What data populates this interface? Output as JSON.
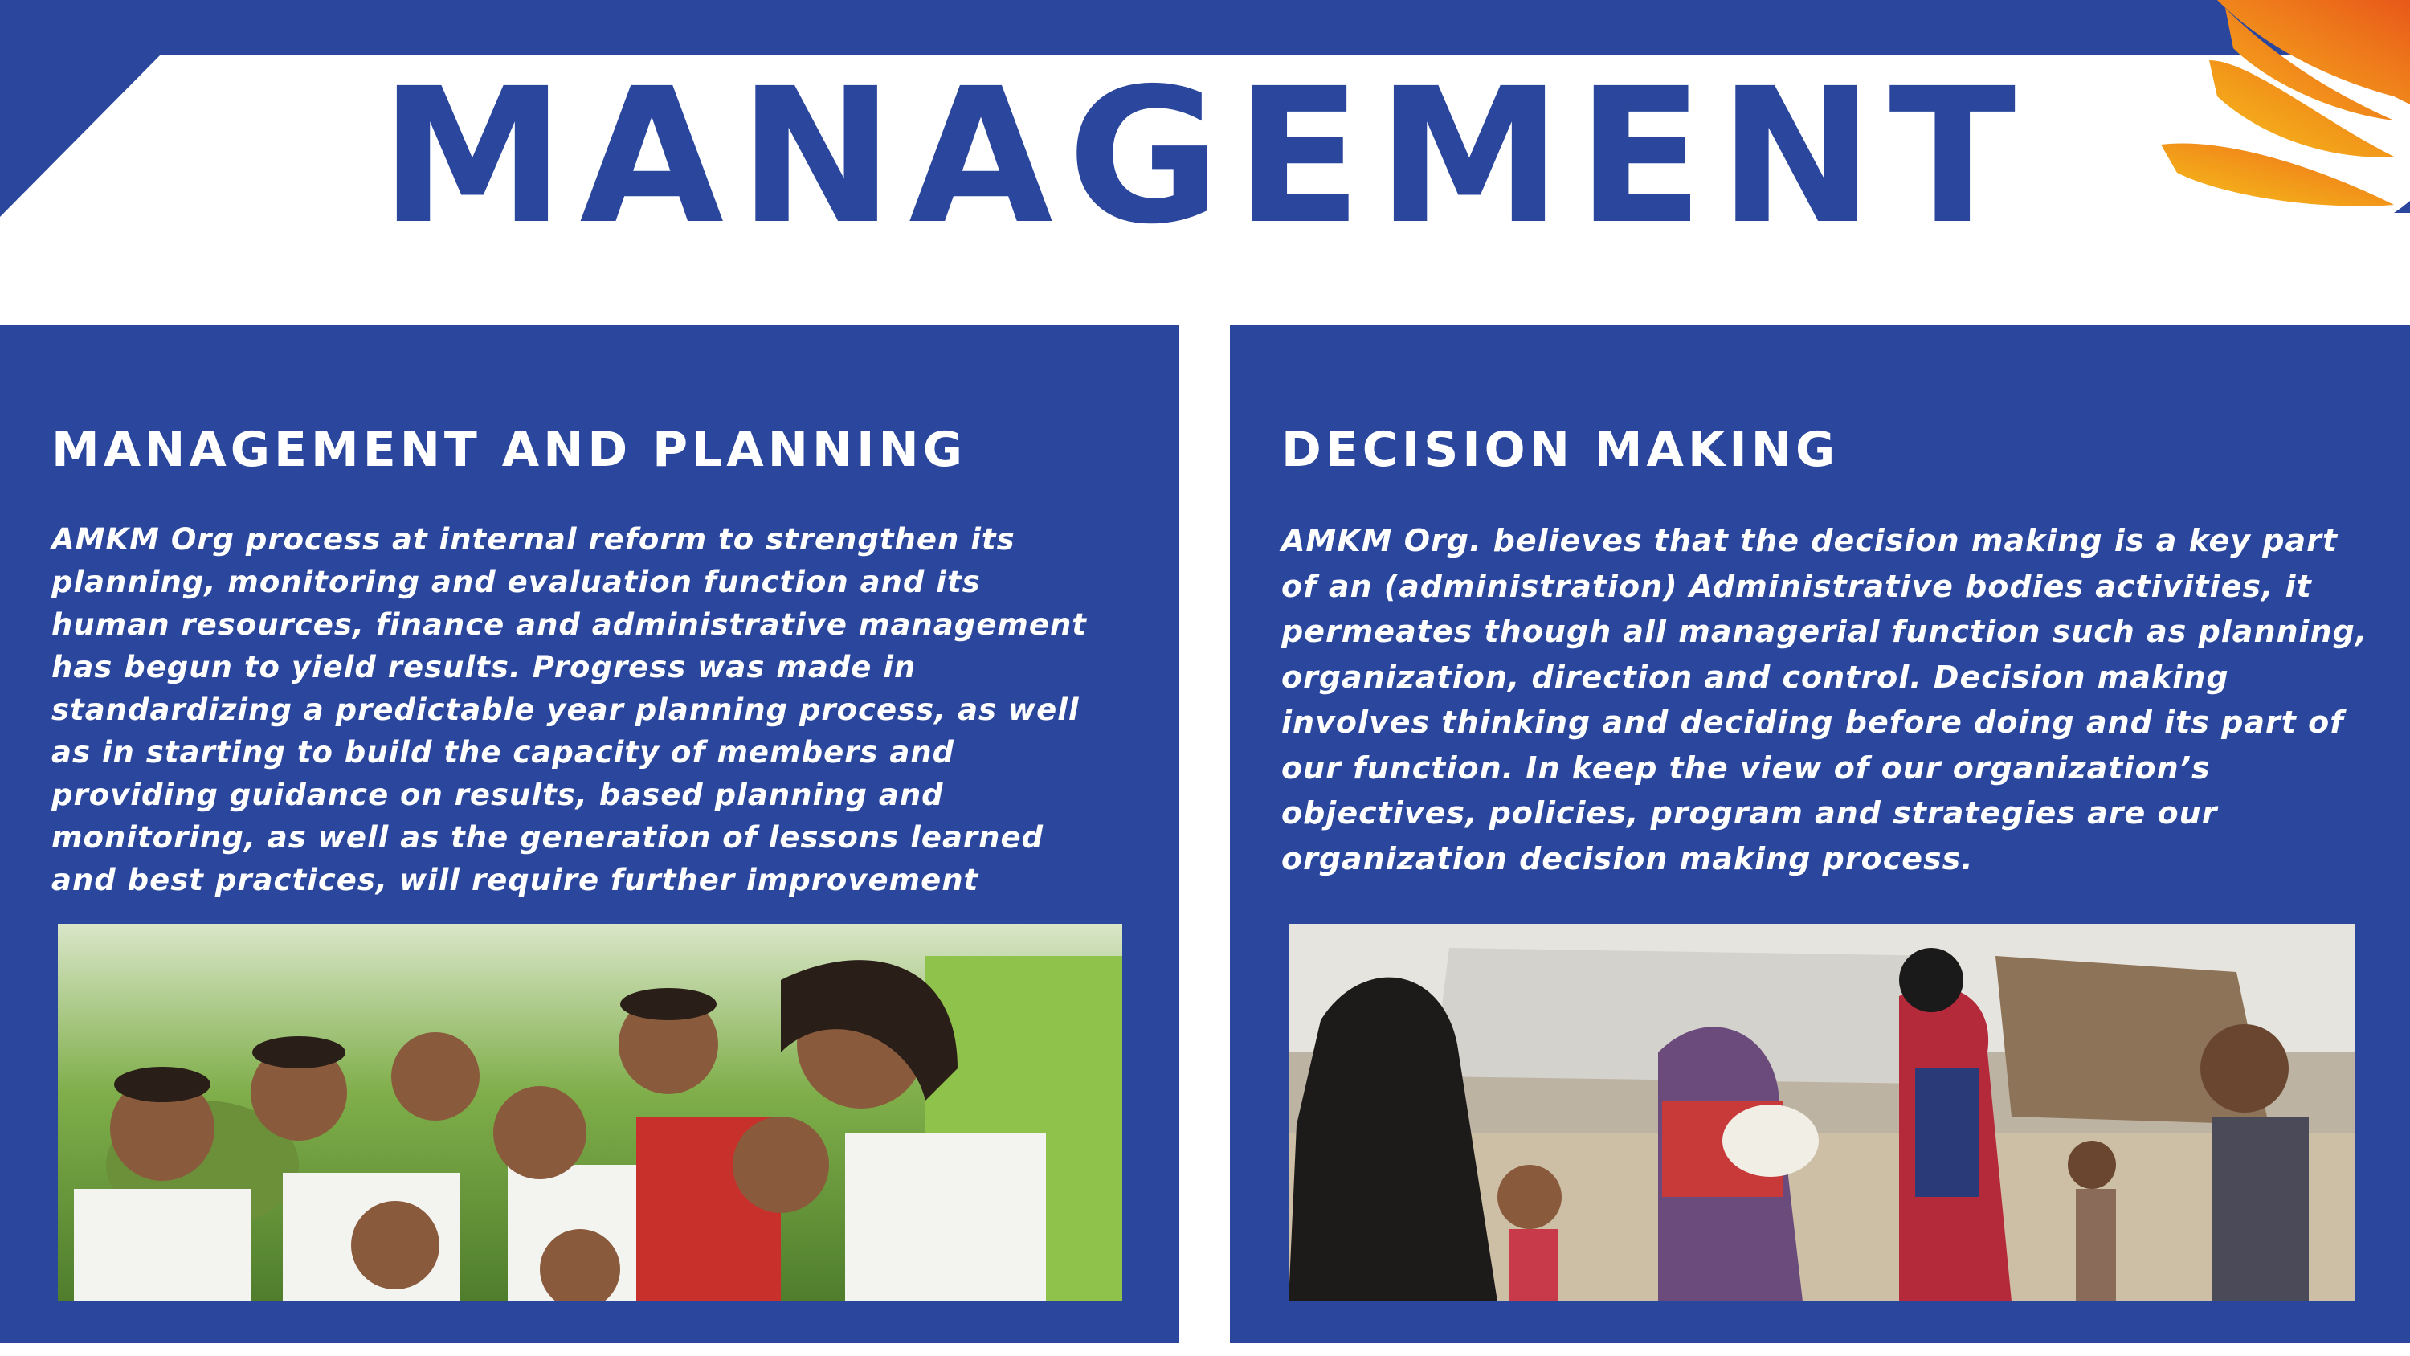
{
  "page": {
    "title": "MANAGEMENT",
    "colors": {
      "brand_blue": "#2b479d",
      "logo_orange": "#f08a1c",
      "logo_yellow": "#f6c21a",
      "background": "#ffffff"
    },
    "logo_icon": "orange-feather-logo-icon"
  },
  "panels": [
    {
      "heading": "MANAGEMENT AND PLANNING",
      "body": "AMKM Org process at internal reform to strengthen its planning, monitoring and evaluation function and its human resources, finance and administrative management has begun to yield results. Progress was made in standardizing a predictable year planning process, as well as in starting to build the capacity of members and providing guidance on results, based planning and monitoring, as well as the generation of lessons learned and best practices, will require further improvement",
      "photo_icon": "group-photo-children-icon"
    },
    {
      "heading": "DECISION MAKING",
      "body": "AMKM Org. believes that the decision making is a key part of an (administration) Administrative bodies activities, it permeates though all managerial function such as planning, organization, direction and control. Decision making involves thinking and deciding before doing and its part of our function. In keep the view of our organization’s objectives, policies, program and strategies are our organization decision making process.",
      "photo_icon": "aid-distribution-photo-icon"
    }
  ]
}
